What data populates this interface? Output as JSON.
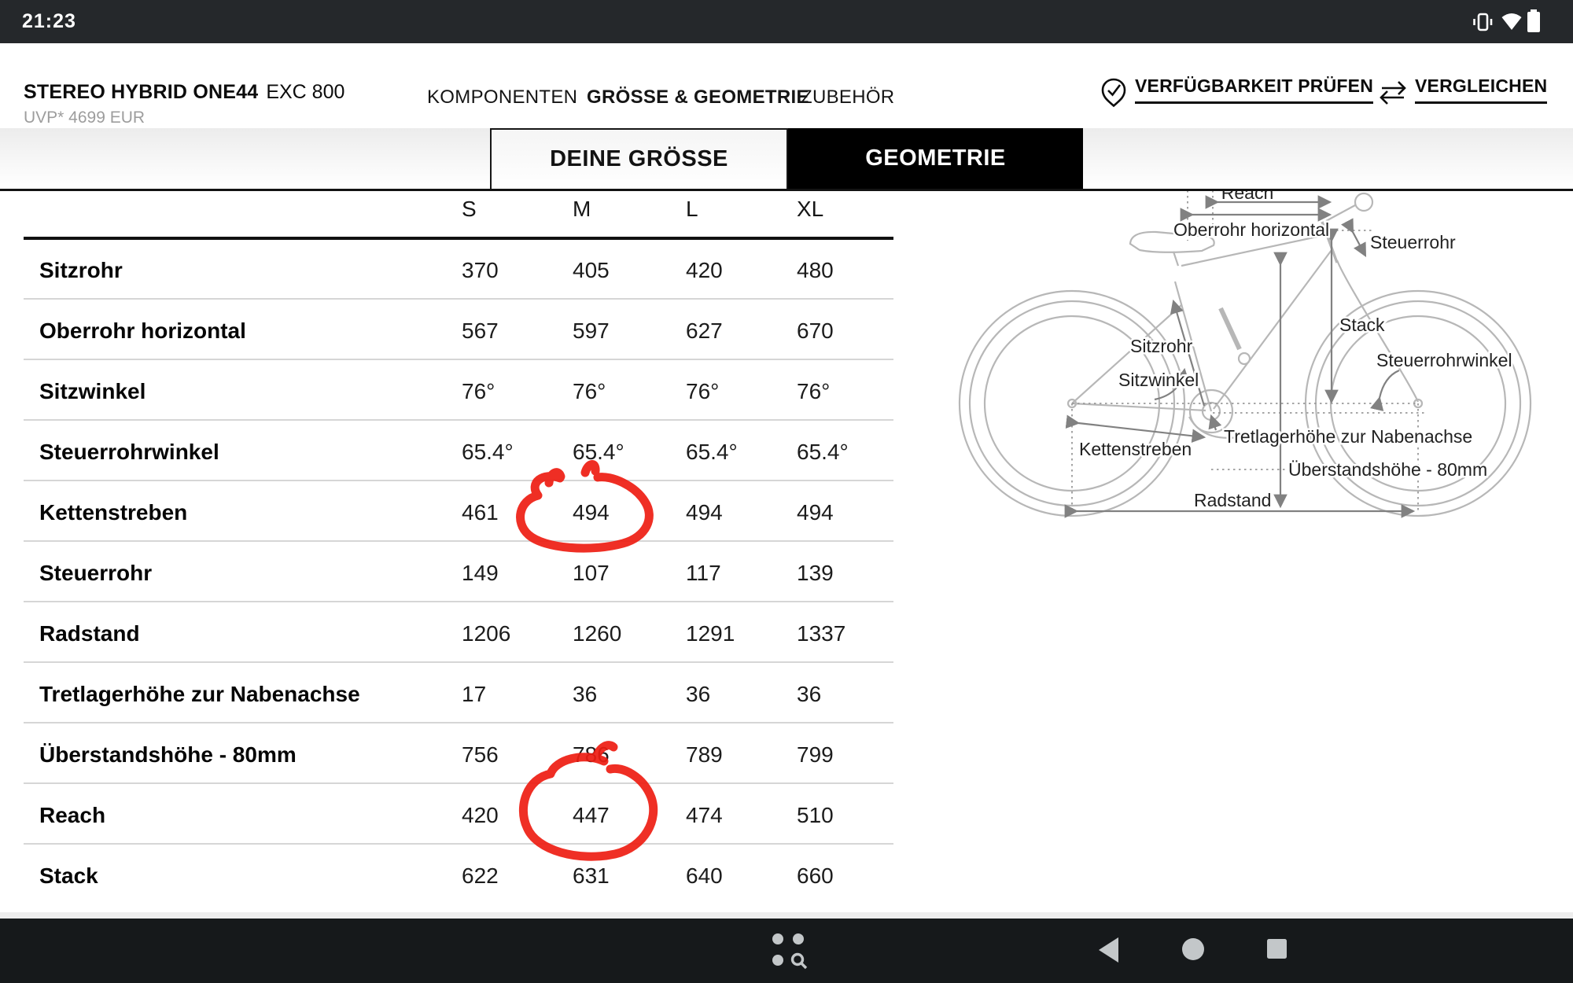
{
  "status_bar": {
    "time": "21:23",
    "icons": [
      "vibrate",
      "wifi",
      "battery"
    ]
  },
  "header": {
    "title": "STEREO HYBRID ONE44",
    "title_suffix": "EXC 800",
    "price": "UVP* 4699 EUR",
    "nav": [
      {
        "label": "KOMPONENTEN",
        "active": false
      },
      {
        "label": "GRÖSSE & GEOMETRIE",
        "active": true
      },
      {
        "label": "ZUBEHÖR",
        "active": false
      }
    ],
    "actions": [
      {
        "label": "VERFÜGBARKEIT PRÜFEN",
        "icon": "check-badge-icon"
      },
      {
        "label": "VERGLEICHEN",
        "icon": "compare-arrows-icon"
      }
    ]
  },
  "tabs": [
    {
      "label": "DEINE GRÖSSE",
      "active": false
    },
    {
      "label": "GEOMETRIE",
      "active": true
    }
  ],
  "table": {
    "columns": [
      "S",
      "M",
      "L",
      "XL"
    ],
    "rows": [
      {
        "label": "Sitzrohr",
        "values": [
          "370",
          "405",
          "420",
          "480"
        ]
      },
      {
        "label": "Oberrohr horizontal",
        "values": [
          "567",
          "597",
          "627",
          "670"
        ]
      },
      {
        "label": "Sitzwinkel",
        "values": [
          "76°",
          "76°",
          "76°",
          "76°"
        ]
      },
      {
        "label": "Steuerrohrwinkel",
        "values": [
          "65.4°",
          "65.4°",
          "65.4°",
          "65.4°"
        ]
      },
      {
        "label": "Kettenstreben",
        "values": [
          "461",
          "494",
          "494",
          "494"
        ]
      },
      {
        "label": "Steuerrohr",
        "values": [
          "149",
          "107",
          "117",
          "139"
        ]
      },
      {
        "label": "Radstand",
        "values": [
          "1206",
          "1260",
          "1291",
          "1337"
        ]
      },
      {
        "label": "Tretlagerhöhe zur Nabenachse",
        "values": [
          "17",
          "36",
          "36",
          "36"
        ]
      },
      {
        "label": "Überstandshöhe - 80mm",
        "values": [
          "756",
          "786",
          "789",
          "799"
        ]
      },
      {
        "label": "Reach",
        "values": [
          "420",
          "447",
          "474",
          "510"
        ]
      },
      {
        "label": "Stack",
        "values": [
          "622",
          "631",
          "640",
          "660"
        ]
      }
    ]
  },
  "annotations": {
    "color": "#ee1d12",
    "items": [
      {
        "type": "hand-drawn-circle",
        "around": "Kettenstreben size M value 494"
      },
      {
        "type": "hand-drawn-circle",
        "around": "Reach size M value 447"
      }
    ]
  },
  "diagram": {
    "labels": {
      "reach": "Reach",
      "oberrohr": "Oberrohr horizontal",
      "steuerrohr": "Steuerrohr",
      "stack": "Stack",
      "steuerrohrwinkel": "Steuerrohrwinkel",
      "sitzrohr": "Sitzrohr",
      "sitzwinkel": "Sitzwinkel",
      "kettenstreben": "Kettenstreben",
      "tretlagerhoehe": "Tretlagerhöhe zur Nabenachse",
      "ueberstandshoehe": "Überstandshöhe - 80mm",
      "radstand": "Radstand"
    }
  },
  "android_nav": {
    "icons": [
      "grid-search",
      "back",
      "home",
      "recents"
    ]
  }
}
